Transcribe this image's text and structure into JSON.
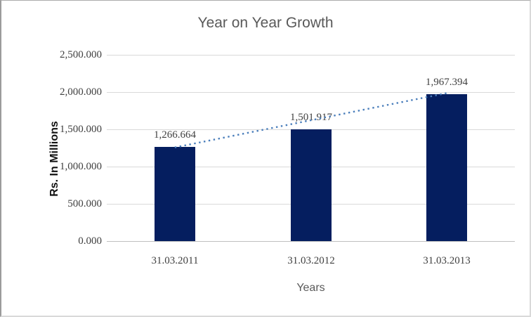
{
  "chart_data": {
    "type": "bar",
    "title": "Year on Year Growth",
    "xlabel": "Years",
    "ylabel": "Rs. In Millions",
    "categories": [
      "31.03.2011",
      "31.03.2012",
      "31.03.2013"
    ],
    "values": [
      1266.664,
      1501.917,
      1967.394
    ],
    "data_labels": [
      "1,266.664",
      "1,501.917",
      "1,967.394"
    ],
    "y_ticks": [
      "2,500.000",
      "2,000.000",
      "1,500.000",
      "1,000.000",
      "500.000",
      "0.000"
    ],
    "ylim": [
      0,
      2500
    ],
    "grid": true,
    "legend": "none",
    "bar_color": "#051e5f",
    "gridline_color": "#d9d9d9",
    "axis_line_color": "#bfbfbf",
    "title_color": "#595959",
    "tick_color": "#3f3f3f",
    "trendline": {
      "type": "linear",
      "style": "dotted",
      "color": "#4a7ebb",
      "from_index": 0,
      "to_index": 2
    }
  }
}
